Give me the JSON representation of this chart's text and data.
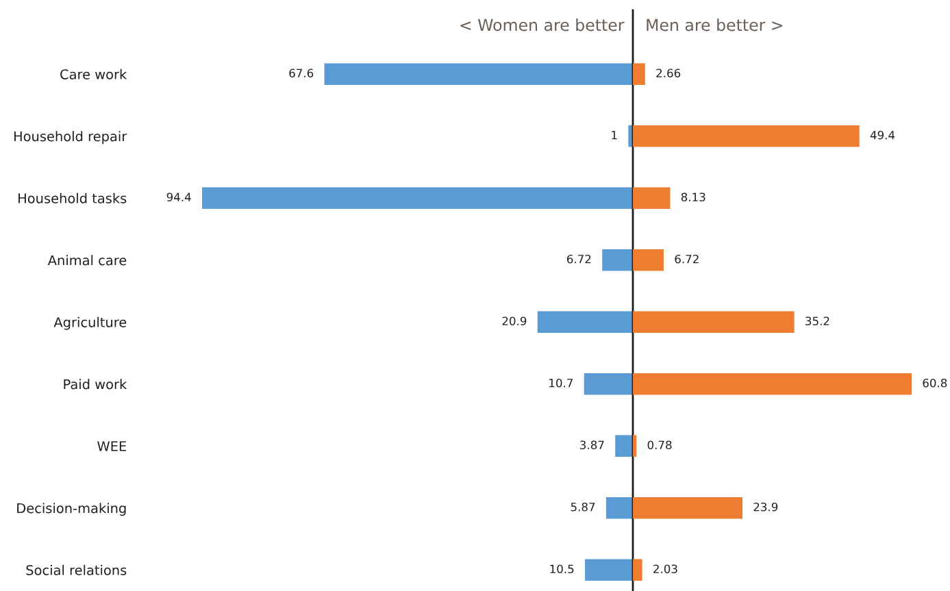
{
  "chart_data": [
    {
      "type": "bar",
      "orientation": "horizontal",
      "categories": [
        "Care work",
        "Household repair",
        "Household tasks",
        "Animal care",
        "Agriculture",
        "Paid work",
        "WEE",
        "Decision-making",
        "Social relations"
      ],
      "series": [
        {
          "color": "#5b9bd5",
          "values": [
            67.6,
            1,
            94.4,
            6.72,
            20.9,
            10.7,
            3.87,
            5.87,
            10.5
          ]
        }
      ],
      "xlim": [
        94.4,
        0
      ],
      "data_labels": true,
      "tick_labels": "y",
      "annotations": [
        "< Women are better"
      ]
    },
    {
      "type": "bar",
      "orientation": "horizontal",
      "categories": [
        null,
        null,
        null,
        null,
        null,
        null,
        null,
        null,
        null
      ],
      "series": [
        {
          "color": "#ed7d31",
          "values": [
            2.66,
            49.4,
            8.13,
            6.72,
            35.2,
            60.8,
            0.78,
            23.9,
            2.03
          ]
        }
      ],
      "xlim": [
        0,
        60.8
      ],
      "data_labels": true,
      "annotations": [
        "Men are better >"
      ]
    }
  ]
}
